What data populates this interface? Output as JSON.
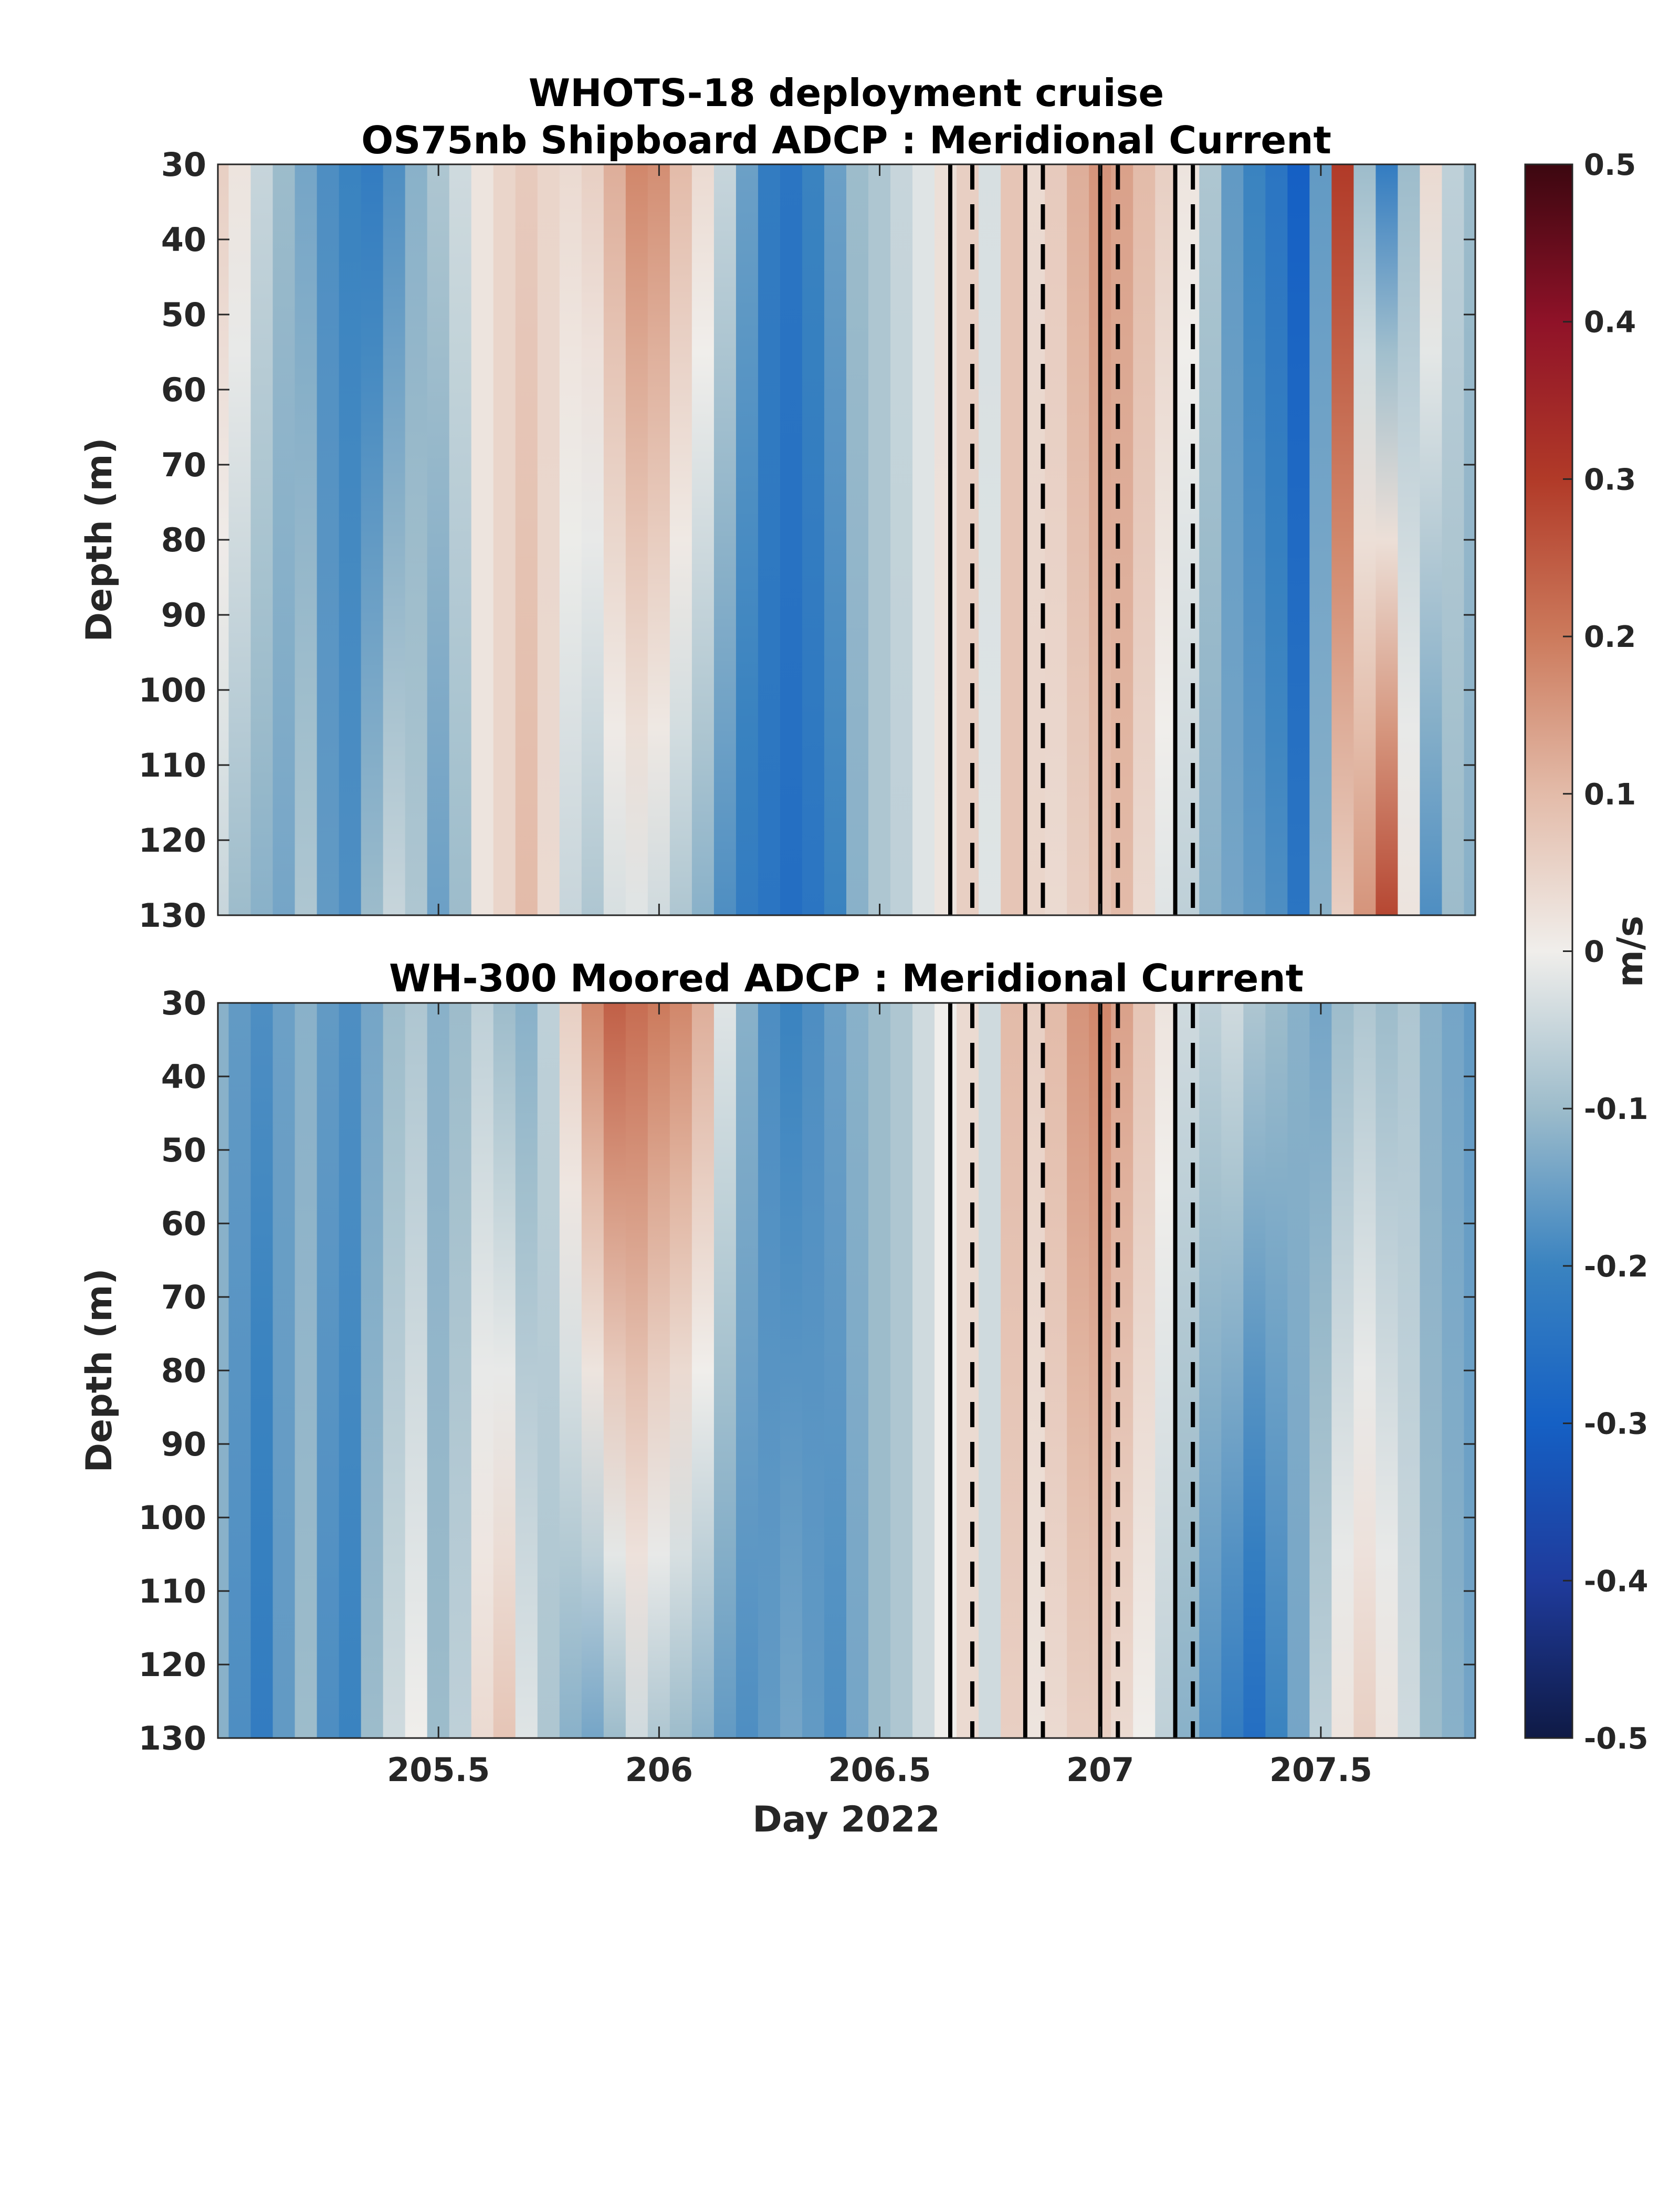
{
  "figure": {
    "suptitle": "WHOTS-18 deployment cruise"
  },
  "chart_data": [
    {
      "type": "heatmap",
      "title": "OS75nb Shipboard ADCP : Meridional Current",
      "xlabel": "",
      "ylabel": "Depth (m)",
      "xlim": [
        205.0,
        207.85
      ],
      "ylim": [
        130,
        30
      ],
      "y_reversed": true,
      "xticks": [
        205.5,
        206.0,
        206.5,
        207.0,
        207.5
      ],
      "xtick_labels_visible": false,
      "yticks": [
        30,
        40,
        50,
        60,
        70,
        80,
        90,
        100,
        110,
        120,
        130
      ],
      "ytick_labels": [
        "30",
        "40",
        "50",
        "60",
        "70",
        "80",
        "90",
        "100",
        "110",
        "120",
        "130"
      ],
      "colormap": "diverging blue-white-red",
      "clim": [
        -0.5,
        0.5
      ],
      "solid_vlines": [
        206.66,
        206.83,
        207.0,
        207.17
      ],
      "dashed_vlines": [
        206.71,
        206.87,
        207.04,
        207.21
      ],
      "time_profile": {
        "x": [
          205.0,
          205.05,
          205.1,
          205.15,
          205.2,
          205.25,
          205.3,
          205.35,
          205.4,
          205.45,
          205.5,
          205.55,
          205.6,
          205.65,
          205.7,
          205.75,
          205.8,
          205.85,
          205.9,
          205.95,
          206.0,
          206.05,
          206.1,
          206.15,
          206.2,
          206.25,
          206.3,
          206.35,
          206.4,
          206.45,
          206.5,
          206.55,
          206.6,
          206.65,
          206.7,
          206.75,
          206.8,
          206.85,
          206.9,
          206.95,
          207.0,
          207.05,
          207.1,
          207.15,
          207.2,
          207.25,
          207.3,
          207.35,
          207.4,
          207.45,
          207.5,
          207.55,
          207.6,
          207.65,
          207.7,
          207.75,
          207.8,
          207.85
        ],
        "top_value": [
          0.06,
          0.02,
          -0.05,
          -0.1,
          -0.14,
          -0.18,
          -0.2,
          -0.22,
          -0.18,
          -0.12,
          -0.08,
          -0.04,
          0.02,
          0.05,
          0.07,
          0.05,
          0.04,
          0.06,
          0.12,
          0.18,
          0.17,
          0.1,
          0.04,
          -0.05,
          -0.15,
          -0.22,
          -0.24,
          -0.2,
          -0.15,
          -0.1,
          -0.08,
          -0.05,
          -0.02,
          0.03,
          0.06,
          -0.03,
          0.08,
          0.04,
          0.07,
          0.12,
          0.16,
          0.14,
          0.1,
          0.06,
          0.02,
          -0.08,
          -0.16,
          -0.2,
          -0.24,
          -0.3,
          -0.16,
          0.3,
          -0.1,
          -0.22,
          -0.1,
          0.04,
          -0.06,
          -0.1
        ],
        "bottom_value": [
          -0.05,
          -0.1,
          -0.12,
          -0.14,
          -0.08,
          -0.16,
          -0.18,
          -0.1,
          -0.05,
          -0.08,
          -0.15,
          -0.1,
          0.02,
          0.05,
          0.1,
          0.04,
          -0.05,
          -0.08,
          -0.03,
          -0.02,
          -0.04,
          -0.08,
          -0.12,
          -0.18,
          -0.22,
          -0.24,
          -0.26,
          -0.24,
          -0.2,
          -0.12,
          -0.08,
          -0.06,
          -0.02,
          0.02,
          0.06,
          -0.02,
          0.08,
          0.05,
          0.04,
          0.06,
          0.08,
          0.1,
          0.04,
          -0.02,
          -0.06,
          -0.12,
          -0.14,
          -0.16,
          -0.18,
          -0.24,
          -0.12,
          0.06,
          0.16,
          0.28,
          0.02,
          -0.18,
          -0.1,
          -0.12
        ]
      }
    },
    {
      "type": "heatmap",
      "title": "WH-300 Moored ADCP : Meridional Current",
      "xlabel": "Day 2022",
      "ylabel": "Depth (m)",
      "xlim": [
        205.0,
        207.85
      ],
      "ylim": [
        130,
        30
      ],
      "y_reversed": true,
      "xticks": [
        205.5,
        206.0,
        206.5,
        207.0,
        207.5
      ],
      "xtick_labels": [
        "205.5",
        "206",
        "206.5",
        "207",
        "207.5"
      ],
      "yticks": [
        30,
        40,
        50,
        60,
        70,
        80,
        90,
        100,
        110,
        120,
        130
      ],
      "ytick_labels": [
        "30",
        "40",
        "50",
        "60",
        "70",
        "80",
        "90",
        "100",
        "110",
        "120",
        "130"
      ],
      "colormap": "diverging blue-white-red",
      "clim": [
        -0.5,
        0.5
      ],
      "solid_vlines": [
        206.66,
        206.83,
        207.0,
        207.17
      ],
      "dashed_vlines": [
        206.71,
        206.87,
        207.04,
        207.21
      ],
      "time_profile": {
        "x": [
          205.0,
          205.05,
          205.1,
          205.15,
          205.2,
          205.25,
          205.3,
          205.35,
          205.4,
          205.45,
          205.5,
          205.55,
          205.6,
          205.65,
          205.7,
          205.75,
          205.8,
          205.85,
          205.9,
          205.95,
          206.0,
          206.05,
          206.1,
          206.15,
          206.2,
          206.25,
          206.3,
          206.35,
          206.4,
          206.45,
          206.5,
          206.55,
          206.6,
          206.65,
          206.7,
          206.75,
          206.8,
          206.85,
          206.9,
          206.95,
          207.0,
          207.05,
          207.1,
          207.15,
          207.2,
          207.25,
          207.3,
          207.35,
          207.4,
          207.45,
          207.5,
          207.55,
          207.6,
          207.65,
          207.7,
          207.75,
          207.8,
          207.85
        ],
        "top_value": [
          -0.12,
          -0.16,
          -0.18,
          -0.15,
          -0.12,
          -0.16,
          -0.18,
          -0.14,
          -0.1,
          -0.08,
          -0.12,
          -0.1,
          -0.06,
          -0.1,
          -0.12,
          -0.06,
          0.06,
          0.18,
          0.24,
          0.22,
          0.2,
          0.18,
          0.12,
          -0.02,
          -0.12,
          -0.18,
          -0.2,
          -0.18,
          -0.15,
          -0.12,
          -0.1,
          -0.08,
          -0.04,
          0.0,
          0.04,
          -0.04,
          0.1,
          0.06,
          0.1,
          0.16,
          0.18,
          0.14,
          0.08,
          0.02,
          -0.04,
          -0.06,
          -0.04,
          -0.08,
          -0.1,
          -0.12,
          -0.14,
          -0.1,
          -0.08,
          -0.1,
          -0.08,
          -0.12,
          -0.14,
          -0.16
        ],
        "bottom_value": [
          -0.12,
          -0.18,
          -0.22,
          -0.16,
          -0.1,
          -0.18,
          -0.2,
          -0.1,
          -0.04,
          0.0,
          -0.1,
          -0.06,
          0.04,
          0.08,
          -0.02,
          -0.08,
          -0.12,
          -0.14,
          -0.1,
          -0.04,
          -0.08,
          -0.1,
          -0.12,
          -0.16,
          -0.18,
          -0.16,
          -0.14,
          -0.16,
          -0.18,
          -0.14,
          -0.1,
          -0.08,
          -0.04,
          0.0,
          0.04,
          -0.04,
          0.06,
          0.02,
          0.04,
          0.06,
          0.06,
          0.04,
          0.0,
          -0.06,
          -0.12,
          -0.18,
          -0.22,
          -0.26,
          -0.2,
          -0.14,
          -0.06,
          0.02,
          0.06,
          0.02,
          -0.04,
          -0.1,
          -0.12,
          -0.14
        ]
      }
    }
  ],
  "colorbar": {
    "label": "m/s",
    "range": [
      -0.5,
      0.5
    ],
    "ticks": [
      0.5,
      0.4,
      0.3,
      0.2,
      0.1,
      0,
      -0.1,
      -0.2,
      -0.3,
      -0.4,
      -0.5
    ],
    "tick_labels": [
      "0.5",
      "0.4",
      "0.3",
      "0.2",
      "0.1",
      "0",
      "-0.1",
      "-0.2",
      "-0.3",
      "-0.4",
      "-0.5"
    ],
    "colors": {
      "-0.5": "#0f1a45",
      "-0.4": "#1f3b9c",
      "-0.3": "#1560c4",
      "-0.2": "#3a83c0",
      "-0.1": "#9dbccb",
      "0": "#f0eeeb",
      "0.1": "#e3bba9",
      "0.2": "#cc7a5c",
      "0.3": "#b13a28",
      "0.4": "#8f1228",
      "0.5": "#3c0710"
    }
  }
}
